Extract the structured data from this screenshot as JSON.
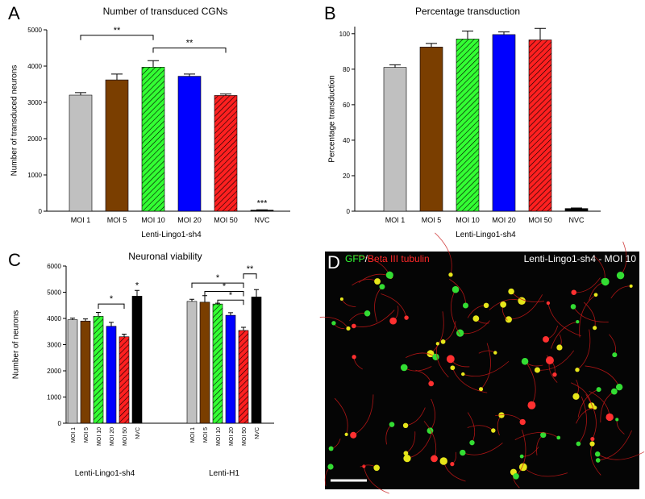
{
  "chart_data": [
    {
      "type": "bar",
      "panel_label": "A",
      "title": "Number of transduced CGNs",
      "ylabel": "Number of transduced neurons",
      "xlabel": "Lenti-Lingo1-sh4",
      "categories": [
        "MOI 1",
        "MOI 5",
        "MOI 10",
        "MOI 20",
        "MOI 50",
        "NVC"
      ],
      "values": [
        3200,
        3620,
        3970,
        3720,
        3190,
        30
      ],
      "errors": [
        70,
        160,
        180,
        60,
        40,
        10
      ],
      "colors": [
        "#c0c0c0",
        "#7a3e00",
        "#33ff33",
        "#0000ff",
        "#ff2020",
        "#000000"
      ],
      "hatched": [
        false,
        false,
        true,
        false,
        true,
        false
      ],
      "ylim": [
        0,
        5000
      ],
      "yticks": [
        0,
        1000,
        2000,
        3000,
        4000,
        5000
      ],
      "annotations": [
        {
          "text": "**",
          "between": [
            "MOI 1",
            "MOI 10"
          ],
          "y": 4850
        },
        {
          "text": "**",
          "between": [
            "MOI 10",
            "MOI 50"
          ],
          "y": 4500
        },
        {
          "text": "***",
          "over": "NVC",
          "y": 150
        }
      ]
    },
    {
      "type": "bar",
      "panel_label": "B",
      "title": "Percentage transduction",
      "ylabel": "Percentage transduction",
      "xlabel": "Lenti-Lingo1-sh4",
      "categories": [
        "MOI 1",
        "MOI 5",
        "MOI 10",
        "MOI 20",
        "MOI 50",
        "NVC"
      ],
      "values": [
        81,
        92.5,
        97,
        99.5,
        96.5,
        1.5
      ],
      "errors": [
        1.5,
        2,
        4.5,
        1.5,
        6.5,
        0.3
      ],
      "colors": [
        "#c0c0c0",
        "#7a3e00",
        "#33ff33",
        "#0000ff",
        "#ff2020",
        "#000000"
      ],
      "hatched": [
        false,
        false,
        true,
        false,
        true,
        false
      ],
      "ylim": [
        0,
        104
      ],
      "yticks": [
        0,
        20,
        40,
        60,
        80,
        100
      ],
      "annotations": []
    },
    {
      "type": "grouped-bar",
      "panel_label": "C",
      "title": "Neuronal viability",
      "ylabel": "Number of neurons",
      "colors": [
        "#c0c0c0",
        "#7a3e00",
        "#33ff33",
        "#0000ff",
        "#ff2020",
        "#000000"
      ],
      "hatched": [
        false,
        false,
        true,
        false,
        true,
        false
      ],
      "ylim": [
        0,
        6000
      ],
      "yticks": [
        0,
        1000,
        2000,
        3000,
        4000,
        5000,
        6000
      ],
      "groups": [
        {
          "xlabel": "Lenti-Lingo1-sh4",
          "categories": [
            "MOI 1",
            "MOI 5",
            "MOI 10",
            "MOI 20",
            "MOI 50",
            "NVC"
          ],
          "values": [
            3950,
            3900,
            4080,
            3700,
            3300,
            4850
          ],
          "errors": [
            60,
            80,
            150,
            150,
            100,
            220
          ],
          "annotations": [
            {
              "text": "*",
              "between": [
                "MOI 10",
                "MOI 50"
              ],
              "y": 4550
            },
            {
              "text": "*",
              "over": "NVC",
              "y": 5150
            }
          ]
        },
        {
          "xlabel": "Lenti-H1",
          "categories": [
            "MOI 1",
            "MOI 5",
            "MOI 10",
            "MOI 20",
            "MOI 50",
            "NVC"
          ],
          "values": [
            4650,
            4620,
            4550,
            4120,
            3540,
            4820
          ],
          "errors": [
            80,
            250,
            30,
            100,
            120,
            280
          ],
          "annotations": [
            {
              "text": "*",
              "between": [
                "MOI 1",
                "MOI 50"
              ],
              "y": 5350
            },
            {
              "text": "*",
              "between": [
                "MOI 5",
                "MOI 50"
              ],
              "y": 5030
            },
            {
              "text": "*",
              "between": [
                "MOI 10",
                "MOI 50"
              ],
              "y": 4700
            },
            {
              "text": "**",
              "between": [
                "MOI 50",
                "NVC"
              ],
              "y": 5700
            }
          ]
        }
      ]
    }
  ],
  "image_panel": {
    "panel_label": "D",
    "title": "Lenti-Lingo1-sh4 - MOI 10",
    "legend": [
      {
        "text": "GFP",
        "color": "#33ff33"
      },
      {
        "text": "/",
        "color": "#ffffff"
      },
      {
        "text": "Beta III tubulin",
        "color": "#ff2828"
      }
    ]
  }
}
